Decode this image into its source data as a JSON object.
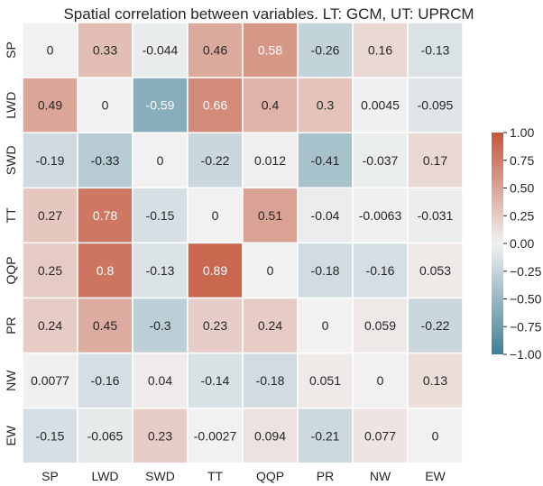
{
  "chart_data": {
    "type": "heatmap",
    "title": "Spatial correlation between variables. LT: GCM, UT: UPRCM",
    "xlabel": "",
    "ylabel": "",
    "x_categories": [
      "SP",
      "LWD",
      "SWD",
      "TT",
      "QQP",
      "PR",
      "NW",
      "EW"
    ],
    "y_categories": [
      "SP",
      "LWD",
      "SWD",
      "TT",
      "QQP",
      "PR",
      "NW",
      "EW"
    ],
    "values": [
      [
        0,
        0.33,
        -0.044,
        0.46,
        0.58,
        -0.26,
        0.16,
        -0.13
      ],
      [
        0.49,
        0,
        -0.59,
        0.66,
        0.4,
        0.3,
        0.0045,
        -0.095
      ],
      [
        -0.19,
        -0.33,
        0,
        -0.22,
        0.012,
        -0.41,
        -0.037,
        0.17
      ],
      [
        0.27,
        0.78,
        -0.15,
        0,
        0.51,
        -0.04,
        -0.0063,
        -0.031
      ],
      [
        0.25,
        0.8,
        -0.13,
        0.89,
        0,
        -0.18,
        -0.16,
        0.053
      ],
      [
        0.24,
        0.45,
        -0.3,
        0.23,
        0.24,
        0,
        0.059,
        -0.22
      ],
      [
        0.0077,
        -0.16,
        0.04,
        -0.14,
        -0.18,
        0.051,
        0,
        0.13
      ],
      [
        -0.15,
        -0.065,
        0.23,
        -0.0027,
        0.094,
        -0.21,
        0.077,
        0
      ]
    ],
    "value_labels": [
      [
        "0",
        "0.33",
        "-0.044",
        "0.46",
        "0.58",
        "-0.26",
        "0.16",
        "-0.13"
      ],
      [
        "0.49",
        "0",
        "-0.59",
        "0.66",
        "0.4",
        "0.3",
        "0.0045",
        "-0.095"
      ],
      [
        "-0.19",
        "-0.33",
        "0",
        "-0.22",
        "0.012",
        "-0.41",
        "-0.037",
        "0.17"
      ],
      [
        "0.27",
        "0.78",
        "-0.15",
        "0",
        "0.51",
        "-0.04",
        "-0.0063",
        "-0.031"
      ],
      [
        "0.25",
        "0.8",
        "-0.13",
        "0.89",
        "0",
        "-0.18",
        "-0.16",
        "0.053"
      ],
      [
        "0.24",
        "0.45",
        "-0.3",
        "0.23",
        "0.24",
        "0",
        "0.059",
        "-0.22"
      ],
      [
        "0.0077",
        "-0.16",
        "0.04",
        "-0.14",
        "-0.18",
        "0.051",
        "0",
        "0.13"
      ],
      [
        "-0.15",
        "-0.065",
        "0.23",
        "-0.0027",
        "0.094",
        "-0.21",
        "0.077",
        "0"
      ]
    ],
    "colorbar": {
      "range": [
        -1.0,
        1.0
      ],
      "ticks": [
        1.0,
        0.75,
        0.5,
        0.25,
        0.0,
        -0.25,
        -0.5,
        -0.75,
        -1.0
      ],
      "tick_labels": [
        "1.00",
        "0.75",
        "0.50",
        "0.25",
        "0.00",
        "−0.25",
        "−0.50",
        "−0.75",
        "−1.00"
      ],
      "placement": "right"
    },
    "colors": {
      "negative": "#3f7f97",
      "neutral": "#f1f1f1",
      "positive": "#c4563b",
      "text_light": "#ffffff",
      "text_dark": "#262626",
      "cell_border": "#ffffff"
    },
    "grid": false
  }
}
